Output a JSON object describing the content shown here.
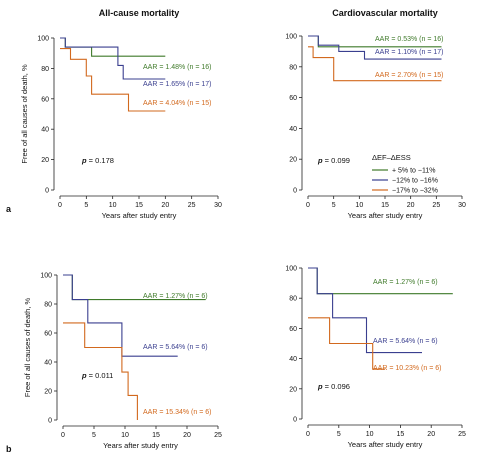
{
  "row_labels": [
    "a",
    "b"
  ],
  "legend": {
    "title": "ΔEF–ΔESS",
    "entries": [
      {
        "label": "+ 5% to −11%",
        "color": "#3f7a2a"
      },
      {
        "label": "−12% to −16%",
        "color": "#3a3f8f"
      },
      {
        "label": "−17% to −32%",
        "color": "#d2691e"
      }
    ]
  },
  "chart_data": [
    {
      "type": "line",
      "title": "All-cause mortality",
      "xlabel": "Years after study entry",
      "ylabel": "Free of all causes of death, %",
      "xlim": [
        0,
        30
      ],
      "ylim": [
        0,
        100
      ],
      "xticks": [
        0,
        5,
        10,
        15,
        20,
        25,
        30
      ],
      "yticks": [
        0,
        20,
        40,
        60,
        80,
        100
      ],
      "pvalue": {
        "label": "p",
        "text": "= 0.178"
      },
      "series": [
        {
          "color": "#3f7a2a",
          "annotation": "AAR = 1.48% (n = 16)",
          "x": [
            0,
            1,
            1,
            6,
            6,
            20
          ],
          "y": [
            100,
            100,
            94,
            94,
            88,
            88
          ]
        },
        {
          "color": "#3a3f8f",
          "annotation": "AAR = 1.65% (n = 17)",
          "x": [
            0,
            1,
            1,
            11,
            11,
            12,
            12,
            20
          ],
          "y": [
            100,
            100,
            94,
            94,
            82,
            82,
            73,
            73
          ]
        },
        {
          "color": "#d2691e",
          "annotation": "AAR = 4.04% (n = 15)",
          "x": [
            0,
            2,
            2,
            5,
            5,
            6,
            6,
            13,
            13,
            20
          ],
          "y": [
            93,
            93,
            86,
            86,
            75,
            75,
            63,
            63,
            52,
            52
          ]
        }
      ]
    },
    {
      "type": "line",
      "title": "Cardiovascular mortality",
      "xlabel": "Years after study entry",
      "ylabel": "",
      "xlim": [
        0,
        30
      ],
      "ylim": [
        0,
        100
      ],
      "xticks": [
        0,
        5,
        10,
        15,
        20,
        25,
        30
      ],
      "yticks": [
        0,
        20,
        40,
        60,
        80,
        100
      ],
      "pvalue": {
        "label": "p",
        "text": "= 0.099"
      },
      "series": [
        {
          "color": "#3f7a2a",
          "annotation": "AAR = 0.53% (n = 16)",
          "x": [
            0,
            2,
            2,
            26
          ],
          "y": [
            100,
            100,
            93,
            93
          ]
        },
        {
          "color": "#3a3f8f",
          "annotation": "AAR = 1.10% (n = 17)",
          "x": [
            0,
            2,
            2,
            6,
            6,
            11,
            11,
            26
          ],
          "y": [
            100,
            100,
            94,
            94,
            90,
            90,
            85,
            85
          ]
        },
        {
          "color": "#d2691e",
          "annotation": "AAR = 2.70% (n = 15)",
          "x": [
            0,
            1,
            1,
            5,
            5,
            26
          ],
          "y": [
            93,
            93,
            86,
            86,
            71,
            71
          ]
        }
      ]
    },
    {
      "type": "line",
      "title": "",
      "xlabel": "Years after study entry",
      "ylabel": "Free of all causes of death, %",
      "xlim": [
        0,
        25
      ],
      "ylim": [
        0,
        100
      ],
      "xticks": [
        0,
        5,
        10,
        15,
        20,
        25
      ],
      "yticks": [
        0,
        20,
        40,
        60,
        80,
        100
      ],
      "pvalue": {
        "label": "p",
        "text": "= 0.011"
      },
      "series": [
        {
          "color": "#3f7a2a",
          "annotation": "AAR = 1.27% (n = 6)",
          "x": [
            0,
            1.5,
            1.5,
            23
          ],
          "y": [
            100,
            100,
            83,
            83
          ]
        },
        {
          "color": "#3a3f8f",
          "annotation": "AAR = 5.64% (n = 6)",
          "x": [
            0,
            1.5,
            1.5,
            4,
            4,
            9.5,
            9.5,
            18.5
          ],
          "y": [
            100,
            100,
            83,
            83,
            67,
            67,
            44,
            44
          ]
        },
        {
          "color": "#d2691e",
          "annotation": "AAR = 15.34% (n = 6)",
          "x": [
            0,
            3.5,
            3.5,
            9.5,
            9.5,
            10.5,
            10.5,
            12,
            12
          ],
          "y": [
            67,
            67,
            50,
            50,
            33,
            33,
            17,
            17,
            0
          ]
        }
      ]
    },
    {
      "type": "line",
      "title": "",
      "xlabel": "Years after study entry",
      "ylabel": "",
      "xlim": [
        0,
        25
      ],
      "ylim": [
        0,
        100
      ],
      "xticks": [
        0,
        5,
        10,
        15,
        20,
        25
      ],
      "yticks": [
        0,
        20,
        40,
        60,
        80,
        100
      ],
      "pvalue": {
        "label": "p",
        "text": "= 0.096"
      },
      "series": [
        {
          "color": "#3f7a2a",
          "annotation": "AAR = 1.27% (n = 6)",
          "x": [
            0,
            1.5,
            1.5,
            23.5
          ],
          "y": [
            100,
            100,
            83,
            83
          ]
        },
        {
          "color": "#3a3f8f",
          "annotation": "AAR = 5.64% (n = 6)",
          "x": [
            0,
            1.5,
            1.5,
            4,
            4,
            9.5,
            9.5,
            18.5
          ],
          "y": [
            100,
            100,
            83,
            83,
            67,
            67,
            44,
            44
          ]
        },
        {
          "color": "#d2691e",
          "annotation": "AAR = 10.23% (n = 6)",
          "x": [
            0,
            3.5,
            3.5,
            9.5,
            9.5,
            10.5,
            10.5,
            12.5
          ],
          "y": [
            67,
            67,
            50,
            50,
            50,
            50,
            33,
            33
          ]
        }
      ]
    }
  ]
}
